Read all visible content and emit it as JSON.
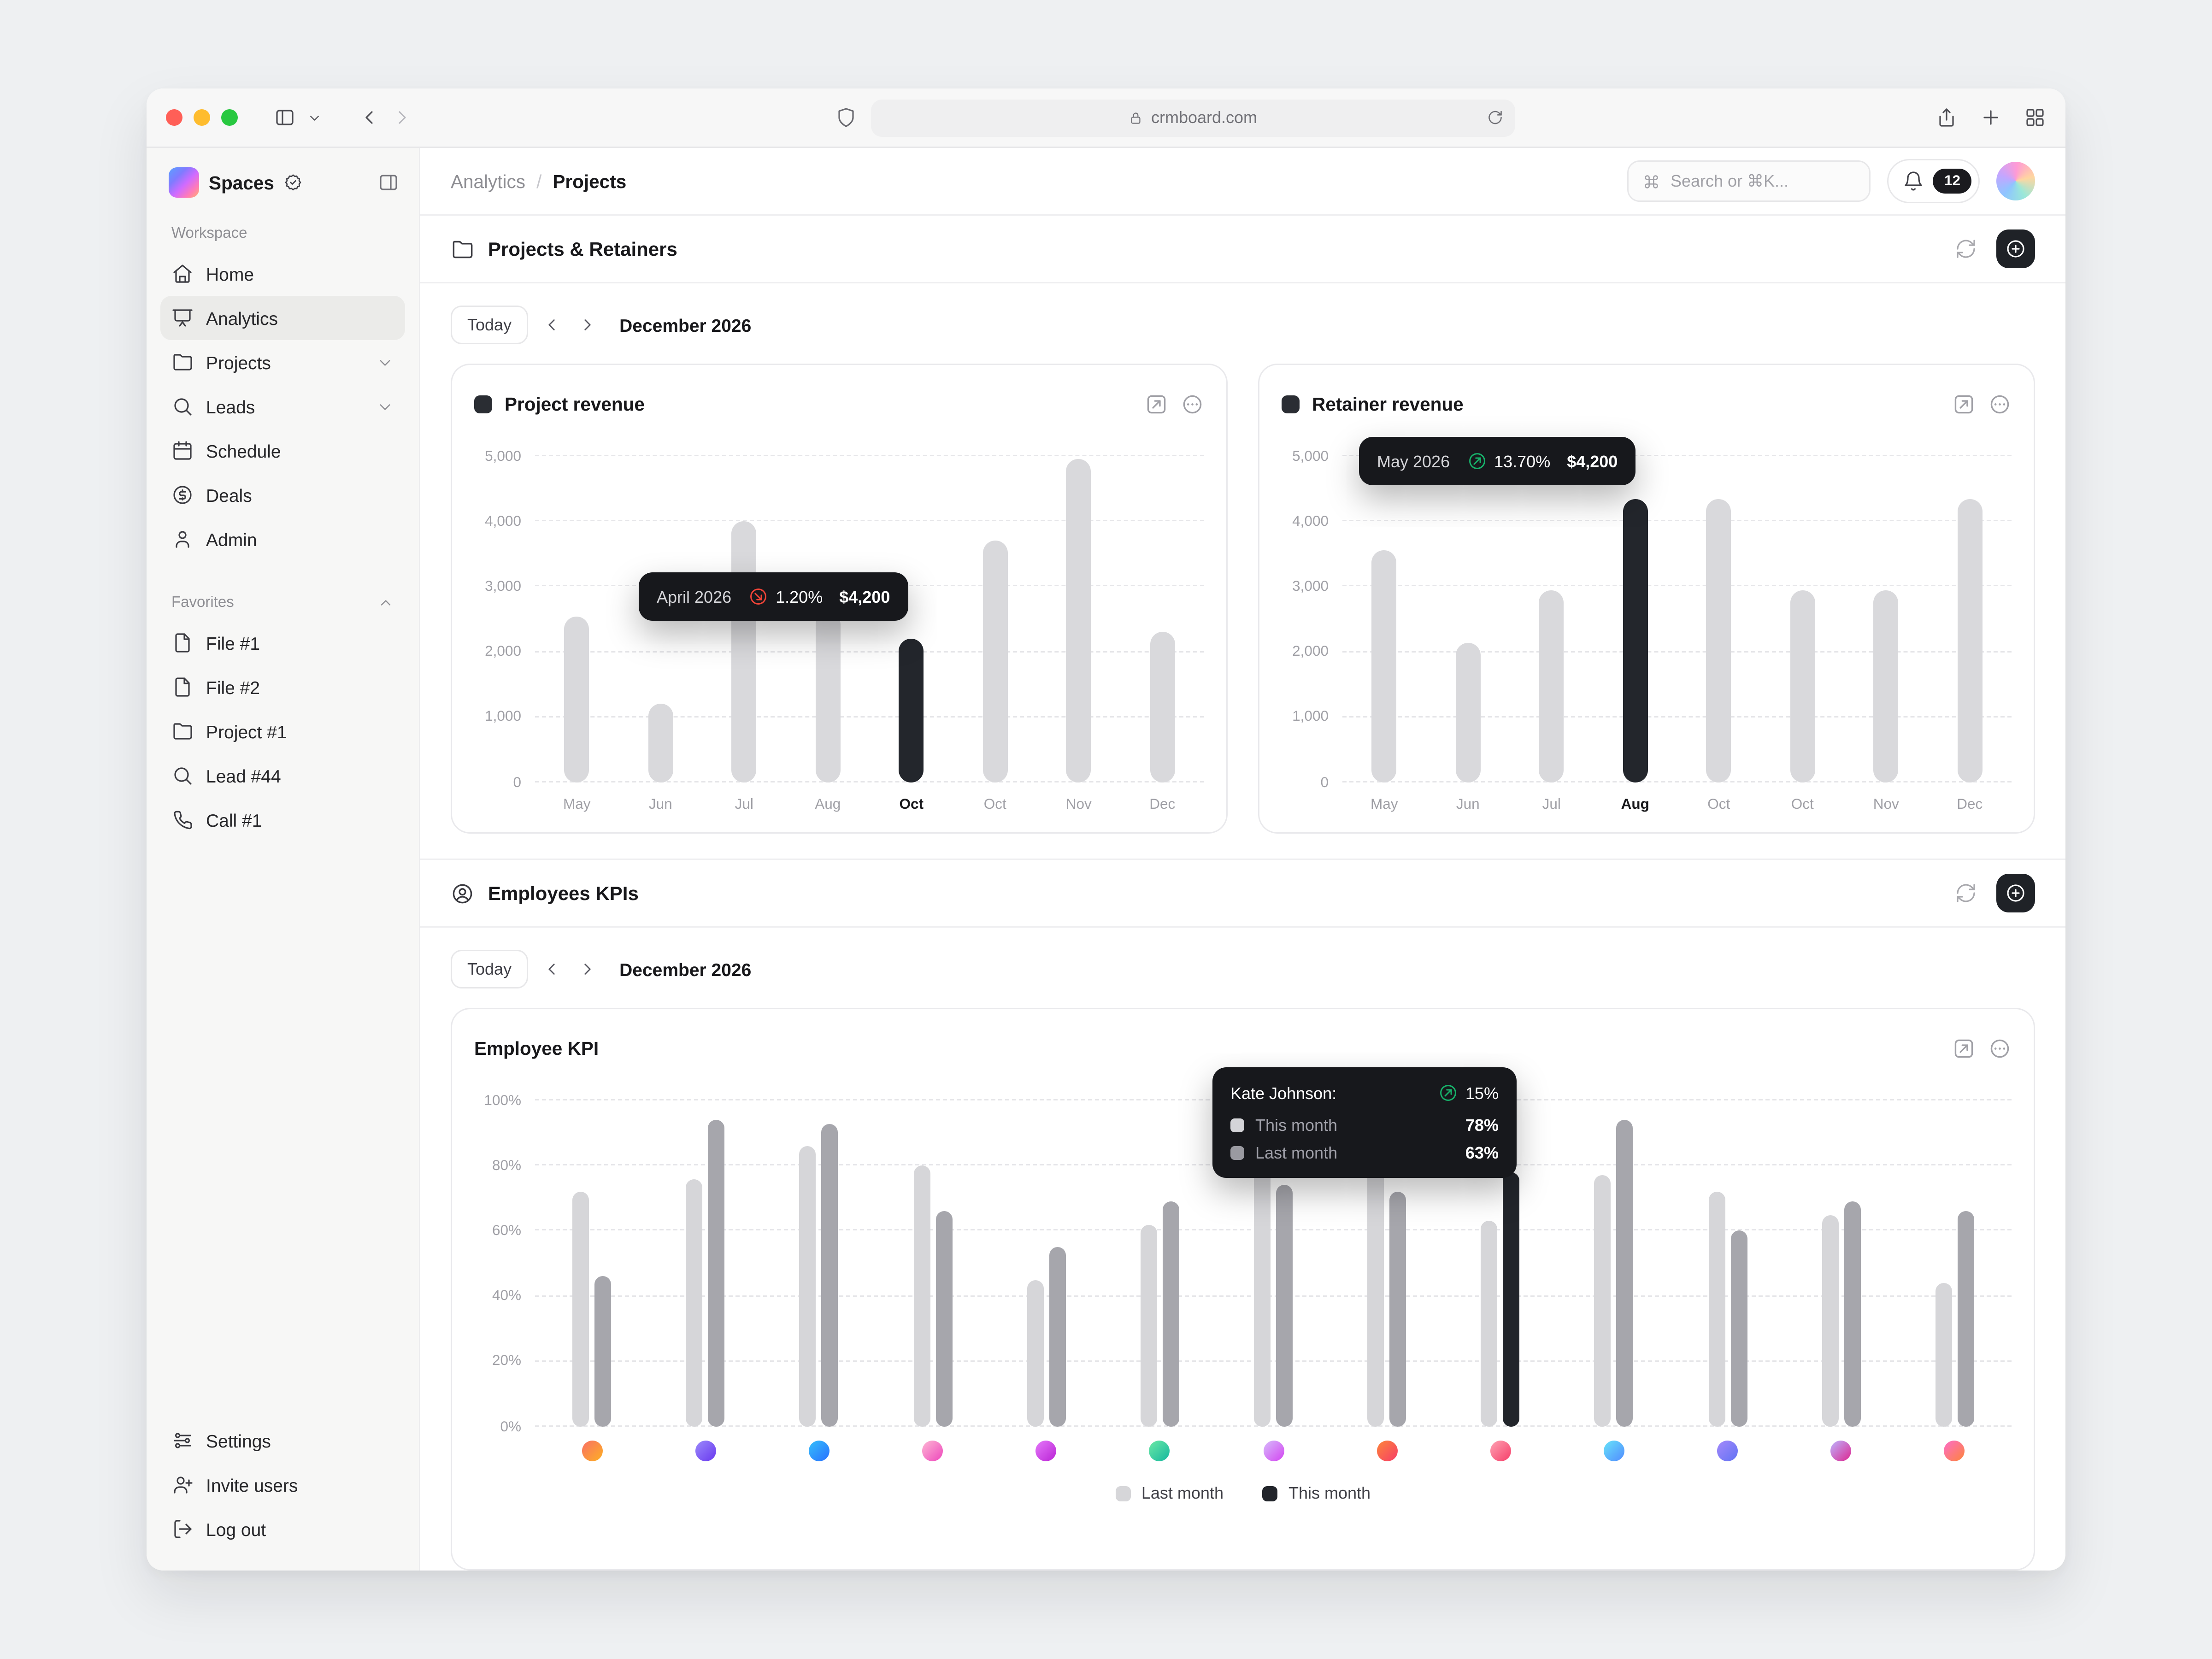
{
  "browser": {
    "url": "crmboard.com"
  },
  "colors": {
    "positive": "#17b26a",
    "negative": "#f04438",
    "highlight": "#22252b",
    "bar_light": "#d9d9dc",
    "bar_mid": "#a6a6ac",
    "traffic_lights": [
      "#ff5f57",
      "#febc2e",
      "#28c840"
    ]
  },
  "sidebar": {
    "app_name": "Spaces",
    "sections": {
      "workspace_label": "Workspace",
      "favorites_label": "Favorites"
    },
    "workspace_items": [
      {
        "label": "Home",
        "icon": "home"
      },
      {
        "label": "Analytics",
        "icon": "presentation",
        "active": true
      },
      {
        "label": "Projects",
        "icon": "folder",
        "chevron": "down"
      },
      {
        "label": "Leads",
        "icon": "search",
        "chevron": "down"
      },
      {
        "label": "Schedule",
        "icon": "calendar"
      },
      {
        "label": "Deals",
        "icon": "deals"
      },
      {
        "label": "Admin",
        "icon": "user"
      }
    ],
    "favorite_items": [
      {
        "label": "File #1",
        "icon": "file"
      },
      {
        "label": "File #2",
        "icon": "file"
      },
      {
        "label": "Project #1",
        "icon": "folder"
      },
      {
        "label": "Lead #44",
        "icon": "search"
      },
      {
        "label": "Call #1",
        "icon": "phone"
      }
    ],
    "footer_items": [
      {
        "label": "Settings",
        "icon": "settings"
      },
      {
        "label": "Invite users",
        "icon": "user-plus"
      },
      {
        "label": "Log out",
        "icon": "log-out"
      }
    ]
  },
  "header": {
    "breadcrumb_parent": "Analytics",
    "breadcrumb_separator": "/",
    "breadcrumb_current": "Projects",
    "search_placeholder": "Search or ⌘K...",
    "notification_count": "12"
  },
  "sections": {
    "projects_retainers": {
      "title": "Projects & Retainers"
    },
    "employees_kpis": {
      "title": "Employees KPIs"
    }
  },
  "controls": {
    "today_label": "Today",
    "period": "December 2026"
  },
  "chart_data": [
    {
      "id": "project_revenue",
      "type": "bar",
      "title": "Project revenue",
      "ylim": [
        0,
        5000
      ],
      "ylabel_ticks": [
        "0",
        "1,000",
        "2,000",
        "3,000",
        "4,000",
        "5,000"
      ],
      "categories": [
        "May",
        "Jun",
        "Jul",
        "Aug",
        "Oct",
        "Oct",
        "Nov",
        "Dec"
      ],
      "values": [
        2550,
        1200,
        4000,
        2600,
        2200,
        3700,
        4950,
        2300
      ],
      "highlight_index": 4,
      "bar_color": "#d9d9dc",
      "highlight_color": "#23262c",
      "grid": true,
      "tooltip": {
        "label": "April 2026",
        "direction": "down",
        "delta": "1.20%",
        "value": "$4,200"
      }
    },
    {
      "id": "retainer_revenue",
      "type": "bar",
      "title": "Retainer revenue",
      "ylim": [
        0,
        5000
      ],
      "ylabel_ticks": [
        "0",
        "1,000",
        "2,000",
        "3,000",
        "4,000",
        "5,000"
      ],
      "categories": [
        "May",
        "Jun",
        "Jul",
        "Aug",
        "Oct",
        "Oct",
        "Nov",
        "Dec"
      ],
      "values": [
        3550,
        2150,
        2950,
        4350,
        4350,
        2950,
        2950,
        4350
      ],
      "highlight_index": 3,
      "bar_color": "#d9d9dc",
      "highlight_color": "#23262c",
      "grid": true,
      "tooltip": {
        "label": "May 2026",
        "direction": "up",
        "delta": "13.70%",
        "value": "$4,200"
      }
    },
    {
      "id": "employee_kpi",
      "type": "grouped-bar",
      "title": "Employee KPI",
      "ylim": [
        0,
        100
      ],
      "ylabel_ticks": [
        "0%",
        "20%",
        "40%",
        "60%",
        "80%",
        "100%"
      ],
      "series": [
        {
          "name": "Last month",
          "color": "#d6d6d9"
        },
        {
          "name": "This month",
          "color": "#a6a6ac"
        }
      ],
      "highlight": {
        "group_index": 8,
        "series_index": 1,
        "color": "#22252b"
      },
      "groups": [
        {
          "last_month": 72,
          "this_month": 46,
          "avatar": [
            "#f97066",
            "#fdb022"
          ]
        },
        {
          "last_month": 76,
          "this_month": 94,
          "avatar": [
            "#9b8afb",
            "#6938ef"
          ]
        },
        {
          "last_month": 86,
          "this_month": 93,
          "avatar": [
            "#36bffa",
            "#2970ff"
          ]
        },
        {
          "last_month": 80,
          "this_month": 66,
          "avatar": [
            "#fdb7d4",
            "#ee46bc"
          ]
        },
        {
          "last_month": 45,
          "this_month": 55,
          "avatar": [
            "#e478fa",
            "#ba24d5"
          ]
        },
        {
          "last_month": 62,
          "this_month": 69,
          "avatar": [
            "#6ce9a6",
            "#15b79e"
          ]
        },
        {
          "last_month": 83,
          "this_month": 74,
          "avatar": [
            "#d6bbfb",
            "#d444f1"
          ]
        },
        {
          "last_month": 89,
          "this_month": 72,
          "avatar": [
            "#fd853a",
            "#f63d68"
          ]
        },
        {
          "last_month": 63,
          "this_month": 78,
          "avatar": [
            "#fea3b4",
            "#f63d68"
          ]
        },
        {
          "last_month": 77,
          "this_month": 94,
          "avatar": [
            "#67e3f9",
            "#528bff"
          ]
        },
        {
          "last_month": 72,
          "this_month": 60,
          "avatar": [
            "#a48afb",
            "#6172f3"
          ]
        },
        {
          "last_month": 65,
          "this_month": 69,
          "avatar": [
            "#bdb4fe",
            "#dd2590"
          ]
        },
        {
          "last_month": 44,
          "this_month": 66,
          "avatar": [
            "#fd6cc9",
            "#fd853a"
          ]
        }
      ],
      "tooltip": {
        "name": "Kate Johnson:",
        "direction": "up",
        "delta": "15%",
        "rows": [
          {
            "label": "This month",
            "value": "78%"
          },
          {
            "label": "Last month",
            "value": "63%"
          }
        ]
      },
      "legend_position": "bottom"
    }
  ]
}
